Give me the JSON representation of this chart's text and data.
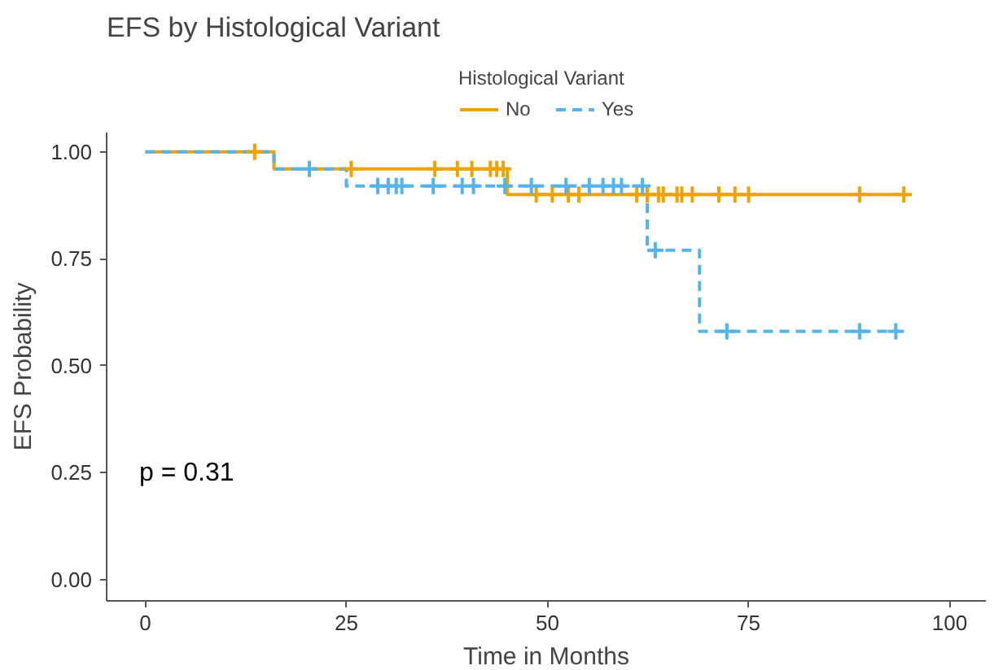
{
  "chart_data": {
    "type": "step",
    "title": "EFS by Histological Variant",
    "xlabel": "Time in Months",
    "ylabel": "EFS Probability",
    "legend_title": "Histological Variant",
    "legend": "top",
    "grid": false,
    "annotations": [
      "p = 0.31"
    ],
    "xlim": [
      -4.8,
      104.5
    ],
    "xticks": [
      0,
      25,
      50,
      75,
      100
    ],
    "ylim": [
      -0.05,
      1.045
    ],
    "yticks": [
      {
        "value": 0,
        "label": "0.00"
      },
      {
        "value": 0.25,
        "label": "0.25"
      },
      {
        "value": 0.5,
        "label": "0.50"
      },
      {
        "value": 0.75,
        "label": "0.75"
      },
      {
        "value": 1,
        "label": "1.00"
      }
    ],
    "series": [
      {
        "name": "No",
        "line_style": "solid",
        "color": "#efa300",
        "x": [
          0,
          16,
          45,
          94.7
        ],
        "values": [
          1,
          0.96,
          0.9,
          0.9
        ]
      },
      {
        "name": "Yes",
        "line_style": "dashed",
        "color": "#56b4e9",
        "x": [
          0,
          16,
          25,
          62.4,
          68.9,
          93.5
        ],
        "values": [
          1,
          0.96,
          0.92,
          0.77,
          0.58,
          0.58
        ]
      },
      {
        "type": "scatter",
        "marker": "cross",
        "color": "#efa300",
        "x": [
          13.6,
          25.6,
          36,
          38.8,
          40.6,
          42.9,
          43.7,
          44.5,
          48.6,
          50.6,
          52.6,
          53.9,
          61.1,
          62.4,
          63.8,
          64.4,
          66.1,
          66.7,
          68,
          71.3,
          73.3,
          75,
          88.8,
          94.3
        ],
        "values": [
          1,
          0.96,
          0.96,
          0.96,
          0.96,
          0.96,
          0.96,
          0.96,
          0.9,
          0.9,
          0.9,
          0.9,
          0.9,
          0.9,
          0.9,
          0.9,
          0.9,
          0.9,
          0.9,
          0.9,
          0.9,
          0.9,
          0.9,
          0.9
        ]
      },
      {
        "type": "scatter",
        "marker": "cross",
        "color": "#56b4e9",
        "x": [
          20.4,
          28.9,
          30.2,
          31.2,
          31.9,
          35.8,
          39.4,
          40.8,
          44.7,
          48,
          52.3,
          55.2,
          56.9,
          58.2,
          59.2,
          61.8,
          63.4,
          72.3,
          88.8,
          93.3
        ],
        "values": [
          0.96,
          0.92,
          0.92,
          0.92,
          0.92,
          0.92,
          0.92,
          0.92,
          0.92,
          0.92,
          0.92,
          0.92,
          0.92,
          0.92,
          0.92,
          0.92,
          0.77,
          0.58,
          0.58,
          0.58
        ]
      }
    ]
  }
}
